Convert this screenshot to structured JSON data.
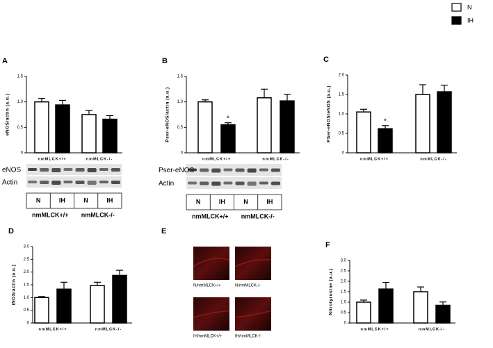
{
  "chart_data": [
    {
      "type": "bar",
      "panel": "A",
      "y_label": "eNOS/actin (a.u.)",
      "categories": [
        "nmMLCK+/+",
        "nmMLCK-/-"
      ],
      "series": [
        {
          "name": "N",
          "color": "#ffffff",
          "values": [
            1.0,
            0.75
          ],
          "errors": [
            0.07,
            0.08
          ]
        },
        {
          "name": "IH",
          "color": "#000000",
          "values": [
            0.94,
            0.66
          ],
          "errors": [
            0.09,
            0.07
          ]
        }
      ],
      "ylim": [
        0,
        1.5
      ],
      "yticks": [
        0,
        0.5,
        {
          "value": 1,
          "label": "1.0"
        },
        1.5
      ],
      "blot": {
        "rows": [
          "eNOS",
          "Actin"
        ],
        "lanes": [
          "N",
          "IH",
          "N",
          "IH"
        ],
        "groups": [
          "nmMLCK+/+",
          "nmMLCK-/-"
        ]
      }
    },
    {
      "type": "bar",
      "panel": "B",
      "y_label": "Pser-eNOS/actin (a.u.)",
      "categories": [
        "nmMLCK+/+",
        "nmMLCK-/-"
      ],
      "series": [
        {
          "name": "N",
          "color": "#ffffff",
          "values": [
            1.0,
            1.08
          ],
          "errors": [
            0.04,
            0.17
          ]
        },
        {
          "name": "IH",
          "color": "#000000",
          "values": [
            0.55,
            1.02
          ],
          "errors": [
            0.04,
            0.13
          ],
          "labels": [
            "*",
            null
          ]
        }
      ],
      "ylim": [
        0,
        1.5
      ],
      "yticks": [
        0,
        0.5,
        {
          "value": 1,
          "label": "1.0"
        },
        1.5
      ],
      "blot": {
        "rows": [
          "Pser-eNOS",
          "Actin"
        ],
        "lanes": [
          "N",
          "IH",
          "N",
          "IH"
        ],
        "groups": [
          "nmMLCK+/+",
          "nmMLCK-/-"
        ]
      }
    },
    {
      "type": "bar",
      "panel": "C",
      "y_label": "PSer-eNOS/eNOS (a.u.)",
      "categories": [
        "nmMLCK+/+",
        "nmMLCK-/-"
      ],
      "series": [
        {
          "name": "N",
          "color": "#ffffff",
          "values": [
            1.05,
            1.5
          ],
          "errors": [
            0.07,
            0.25
          ]
        },
        {
          "name": "IH",
          "color": "#000000",
          "values": [
            0.62,
            1.57
          ],
          "errors": [
            0.08,
            0.17
          ],
          "labels": [
            "*",
            null
          ]
        }
      ],
      "ylim": [
        0,
        2
      ],
      "yticks": [
        0,
        0.5,
        {
          "value": 1,
          "label": "1.0"
        },
        1.5,
        {
          "value": 2,
          "label": "2.0"
        }
      ]
    },
    {
      "type": "bar",
      "panel": "D",
      "y_label": "iNOS/actin (a.u.)",
      "categories": [
        "nmMLCK+/+",
        "nmMLCK-/-"
      ],
      "series": [
        {
          "name": "N",
          "color": "#ffffff",
          "values": [
            1.0,
            1.47
          ],
          "errors": [
            0.04,
            0.13
          ]
        },
        {
          "name": "IH",
          "color": "#000000",
          "values": [
            1.33,
            1.87
          ],
          "errors": [
            0.27,
            0.2
          ]
        }
      ],
      "ylim": [
        0,
        3
      ],
      "yticks": [
        0,
        0.5,
        {
          "value": 1,
          "label": "1.0"
        },
        1.5,
        {
          "value": 2,
          "label": "2.0"
        },
        2.5,
        {
          "value": 3,
          "label": "3.0"
        }
      ]
    },
    {
      "type": "image",
      "panel": "E",
      "labels": [
        "N/nmMLCK+/+",
        "N/nmMLCK-/-",
        "IH/nmMLCK+/+",
        "IH/nmMLCK-/-"
      ]
    },
    {
      "type": "bar",
      "panel": "F",
      "y_label": "Nitrotyrosine (a.u.)",
      "categories": [
        "nmMLCK+/+",
        "nmMLCK-/-"
      ],
      "series": [
        {
          "name": "N",
          "color": "#ffffff",
          "values": [
            1.0,
            1.5
          ],
          "errors": [
            0.1,
            0.23
          ]
        },
        {
          "name": "IH",
          "color": "#000000",
          "values": [
            1.63,
            0.85
          ],
          "errors": [
            0.32,
            0.16
          ]
        }
      ],
      "ylim": [
        0,
        3
      ],
      "yticks": [
        0,
        0.5,
        {
          "value": 1,
          "label": "1.0"
        },
        1.5,
        {
          "value": 2,
          "label": "2.0"
        },
        2.5,
        {
          "value": 3,
          "label": "3.0"
        }
      ]
    }
  ]
}
